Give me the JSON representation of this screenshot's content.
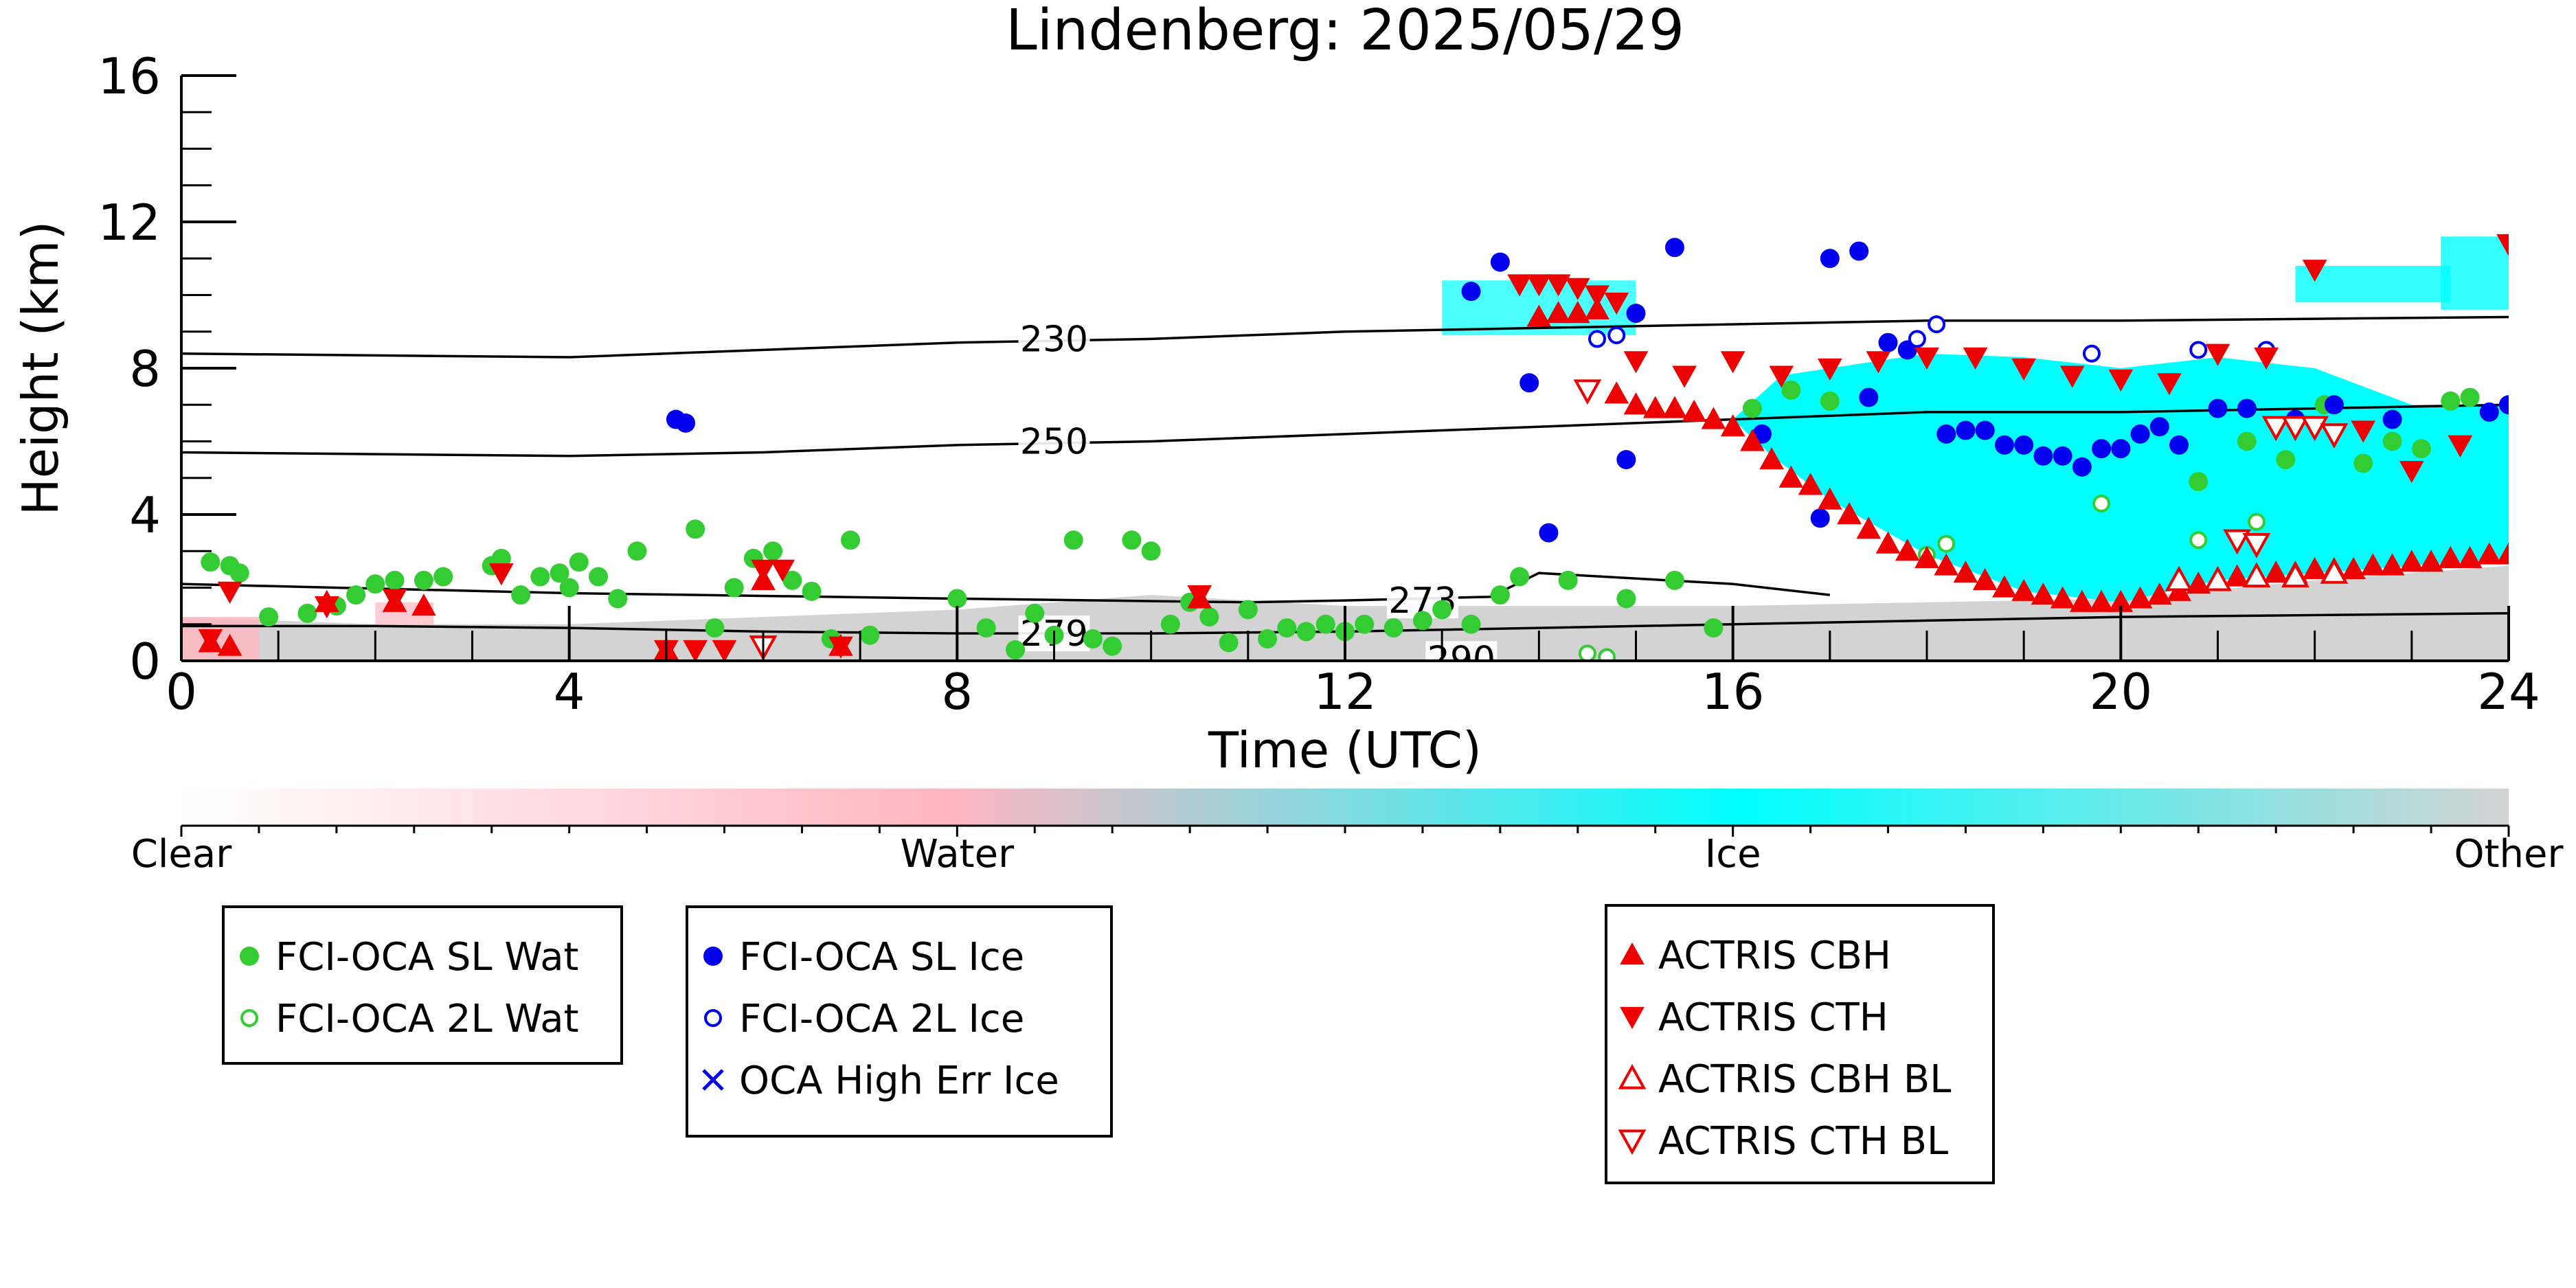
{
  "chart_data": {
    "type": "scatter",
    "title": "Lindenberg: 2025/05/29",
    "xlabel": "Time (UTC)",
    "ylabel": "Height (km)",
    "xlim": [
      0,
      24
    ],
    "ylim": [
      0,
      16
    ],
    "x_ticks": [
      0,
      4,
      8,
      12,
      16,
      20,
      24
    ],
    "y_ticks": [
      0,
      4,
      8,
      12,
      16
    ],
    "grid": false,
    "colorbar": {
      "labels": [
        "Clear",
        "Water",
        "Ice",
        "Other"
      ],
      "colors": [
        "#ffffff",
        "#ffb6c1",
        "#00ffff",
        "#d3d3d3"
      ]
    },
    "isotherms": [
      {
        "label": "230",
        "x": [
          0,
          2,
          4,
          6,
          8,
          10,
          12,
          14,
          16,
          18,
          20,
          22,
          24
        ],
        "y": [
          8.4,
          8.35,
          8.3,
          8.5,
          8.7,
          8.8,
          9.0,
          9.1,
          9.2,
          9.3,
          9.3,
          9.35,
          9.4
        ]
      },
      {
        "label": "250",
        "x": [
          0,
          2,
          4,
          6,
          8,
          10,
          12,
          14,
          16,
          18,
          20,
          22,
          24
        ],
        "y": [
          5.7,
          5.65,
          5.6,
          5.7,
          5.9,
          6.0,
          6.2,
          6.4,
          6.6,
          6.8,
          6.8,
          6.9,
          7.0
        ]
      },
      {
        "label": "273",
        "x": [
          0,
          4,
          8,
          11,
          12,
          13.5,
          14,
          16,
          17
        ],
        "y": [
          2.1,
          1.85,
          1.7,
          1.6,
          1.65,
          1.75,
          2.4,
          2.1,
          1.8
        ]
      },
      {
        "label": "279",
        "x": [
          0,
          2,
          4,
          6,
          8,
          10,
          12,
          14,
          16,
          18,
          20,
          22,
          24
        ],
        "y": [
          0.95,
          0.95,
          0.9,
          0.8,
          0.75,
          0.75,
          0.8,
          0.9,
          1.0,
          1.1,
          1.2,
          1.25,
          1.3
        ]
      },
      {
        "label": "290",
        "x": [
          13,
          13.3
        ],
        "y": [
          0.05,
          0.05
        ]
      }
    ],
    "series": [
      {
        "name": "FCI-OCA SL Wat",
        "color": "#33cc33",
        "marker": "filled-circle",
        "x": [
          0.3,
          0.5,
          0.6,
          0.9,
          1.3,
          1.6,
          1.8,
          2.0,
          2.2,
          2.5,
          2.7,
          3.2,
          3.3,
          3.5,
          3.7,
          3.9,
          4.0,
          4.1,
          4.3,
          4.5,
          4.7,
          5.3,
          5.5,
          5.7,
          5.9,
          6.1,
          6.3,
          6.5,
          6.7,
          6.9,
          7.1,
          8.0,
          8.3,
          8.6,
          8.8,
          9.0,
          9.2,
          9.4,
          9.6,
          9.8,
          10.0,
          10.2,
          10.4,
          10.6,
          10.8,
          11.0,
          11.2,
          11.4,
          11.6,
          11.8,
          12.0,
          12.2,
          12.5,
          12.8,
          13.0,
          13.3,
          13.6,
          13.8,
          14.3,
          14.9,
          15.4,
          15.8,
          16.2,
          16.6,
          17.0,
          20.8,
          21.3,
          21.7,
          22.1,
          22.5,
          22.8,
          23.1,
          23.4,
          23.6
        ],
        "y": [
          2.7,
          2.6,
          2.4,
          1.2,
          1.3,
          1.5,
          1.8,
          2.1,
          2.2,
          2.2,
          2.3,
          2.6,
          2.8,
          1.8,
          2.3,
          2.4,
          2.0,
          2.7,
          2.3,
          1.7,
          3.0,
          3.6,
          0.9,
          2.0,
          2.8,
          3.0,
          2.2,
          1.9,
          0.6,
          3.3,
          0.7,
          1.7,
          0.9,
          0.3,
          1.3,
          0.7,
          3.3,
          0.6,
          0.4,
          3.3,
          3.0,
          1.0,
          1.6,
          1.2,
          0.5,
          1.4,
          0.6,
          0.9,
          0.8,
          1.0,
          0.8,
          1.0,
          0.9,
          1.1,
          1.4,
          1.0,
          1.8,
          2.3,
          2.2,
          1.7,
          2.2,
          0.9,
          6.9,
          7.4,
          7.1,
          4.9,
          6.0,
          5.5,
          7.0,
          5.4,
          6.0,
          5.8,
          7.1,
          7.2
        ]
      },
      {
        "name": "FCI-OCA 2L Wat",
        "color": "#33cc33",
        "marker": "open-circle",
        "x": [
          14.5,
          14.7,
          18.0,
          18.2,
          19.8,
          20.8,
          21.4
        ],
        "y": [
          0.2,
          0.1,
          2.9,
          3.2,
          4.3,
          3.3,
          3.8
        ]
      },
      {
        "name": "FCI-OCA SL Ice",
        "color": "#0000ee",
        "marker": "filled-circle",
        "x": [
          5.1,
          5.2,
          13.3,
          13.6,
          13.9,
          14.1,
          14.9,
          15.0,
          15.4,
          16.3,
          16.9,
          17.0,
          17.3,
          17.4,
          17.6,
          17.8,
          18.2,
          18.4,
          18.6,
          18.8,
          19.0,
          19.2,
          19.4,
          19.6,
          19.8,
          20.0,
          20.2,
          20.4,
          20.6,
          21.0,
          21.3,
          21.8,
          22.2,
          22.8,
          23.8,
          24.0
        ],
        "y": [
          6.6,
          6.5,
          10.1,
          10.9,
          7.6,
          3.5,
          5.5,
          9.5,
          11.3,
          6.2,
          3.9,
          11.0,
          11.2,
          7.2,
          8.7,
          8.5,
          6.2,
          6.3,
          6.3,
          5.9,
          5.9,
          5.6,
          5.6,
          5.3,
          5.8,
          5.8,
          6.2,
          6.4,
          5.9,
          6.9,
          6.9,
          6.6,
          7.0,
          6.6,
          6.8,
          7.0
        ]
      },
      {
        "name": "FCI-OCA 2L Ice",
        "color": "#0000ee",
        "marker": "open-circle",
        "x": [
          14.6,
          14.8,
          17.9,
          18.1,
          19.7,
          20.8,
          21.5
        ],
        "y": [
          8.8,
          8.9,
          8.8,
          9.2,
          8.4,
          8.5,
          8.5
        ]
      },
      {
        "name": "OCA High Err Ice",
        "color": "#0000ee",
        "marker": "x",
        "x": [],
        "y": []
      },
      {
        "name": "ACTRIS CBH",
        "color": "#ee0000",
        "marker": "filled-triangle-up",
        "x": [
          0.3,
          0.5,
          1.5,
          2.2,
          2.5,
          5.0,
          6.0,
          6.8,
          10.5,
          14.0,
          14.2,
          14.4,
          14.6,
          14.8,
          15.0,
          15.2,
          15.4,
          15.6,
          15.8,
          16.0,
          16.2,
          16.4,
          16.6,
          16.8,
          17.0,
          17.2,
          17.4,
          17.6,
          17.8,
          18.0,
          18.2,
          18.4,
          18.6,
          18.8,
          19.0,
          19.2,
          19.4,
          19.6,
          19.8,
          20.0,
          20.2,
          20.4,
          20.6,
          20.8,
          21.0,
          21.2,
          21.4,
          21.6,
          21.8,
          22.0,
          22.2,
          22.4,
          22.6,
          22.8,
          23.0,
          23.2,
          23.4,
          23.6,
          23.8,
          24.0
        ],
        "y": [
          0.5,
          0.4,
          1.6,
          1.6,
          1.5,
          0.3,
          2.2,
          0.4,
          1.7,
          9.4,
          9.5,
          9.5,
          9.6,
          7.3,
          7.0,
          6.9,
          6.9,
          6.8,
          6.6,
          6.4,
          6.0,
          5.5,
          5.0,
          4.8,
          4.4,
          4.0,
          3.6,
          3.2,
          3.0,
          2.8,
          2.6,
          2.4,
          2.2,
          2.0,
          1.9,
          1.8,
          1.7,
          1.6,
          1.6,
          1.6,
          1.7,
          1.8,
          1.9,
          2.1,
          2.2,
          2.3,
          2.3,
          2.4,
          2.4,
          2.5,
          2.5,
          2.5,
          2.6,
          2.6,
          2.7,
          2.7,
          2.8,
          2.8,
          2.9,
          2.9
        ]
      },
      {
        "name": "ACTRIS CTH",
        "color": "#ee0000",
        "marker": "filled-triangle-down",
        "x": [
          0.3,
          0.5,
          1.5,
          2.2,
          3.3,
          5.0,
          5.3,
          5.6,
          6.0,
          6.2,
          6.8,
          10.5,
          13.8,
          14.0,
          14.2,
          14.4,
          14.6,
          14.8,
          15.0,
          15.5,
          16.0,
          16.5,
          17.0,
          17.5,
          18.0,
          18.5,
          19.0,
          19.5,
          20.0,
          20.5,
          21.0,
          21.5,
          22.0,
          22.5,
          23.0,
          23.5,
          24.0
        ],
        "y": [
          0.6,
          1.9,
          1.5,
          1.7,
          2.4,
          0.3,
          0.3,
          0.3,
          2.5,
          2.5,
          0.4,
          1.8,
          10.3,
          10.3,
          10.3,
          10.2,
          10.0,
          9.8,
          8.2,
          7.8,
          8.2,
          7.8,
          8.0,
          8.2,
          8.3,
          8.3,
          8.0,
          7.8,
          7.7,
          7.6,
          8.4,
          8.3,
          10.7,
          6.3,
          5.2,
          5.9,
          11.4
        ]
      },
      {
        "name": "ACTRIS CBH BL",
        "color": "#ee0000",
        "marker": "open-triangle-up",
        "x": [
          20.6,
          21.0,
          21.4,
          21.8,
          22.2
        ],
        "y": [
          2.2,
          2.2,
          2.3,
          2.3,
          2.4
        ]
      },
      {
        "name": "ACTRIS CTH BL",
        "color": "#ee0000",
        "marker": "open-triangle-down",
        "x": [
          6.0,
          14.5,
          21.2,
          21.4,
          21.6,
          21.8,
          22.0,
          22.2
        ],
        "y": [
          0.4,
          7.4,
          3.3,
          3.2,
          6.4,
          6.4,
          6.4,
          6.2
        ]
      }
    ]
  },
  "legend": {
    "groups": [
      {
        "entries": [
          {
            "label": "FCI-OCA SL Wat",
            "color": "#33cc33",
            "marker": "filled-circle"
          },
          {
            "label": "FCI-OCA 2L Wat",
            "color": "#33cc33",
            "marker": "open-circle"
          }
        ]
      },
      {
        "entries": [
          {
            "label": "FCI-OCA SL Ice",
            "color": "#0000ee",
            "marker": "filled-circle"
          },
          {
            "label": "FCI-OCA 2L Ice",
            "color": "#0000ee",
            "marker": "open-circle"
          },
          {
            "label": "OCA High Err Ice",
            "color": "#0000ee",
            "marker": "x"
          }
        ]
      },
      {
        "entries": [
          {
            "label": "ACTRIS CBH",
            "color": "#ee0000",
            "marker": "filled-triangle-up"
          },
          {
            "label": "ACTRIS CTH",
            "color": "#ee0000",
            "marker": "filled-triangle-down"
          },
          {
            "label": "ACTRIS CBH BL",
            "color": "#ee0000",
            "marker": "open-triangle-up"
          },
          {
            "label": "ACTRIS CTH BL",
            "color": "#ee0000",
            "marker": "open-triangle-down"
          }
        ]
      }
    ]
  }
}
